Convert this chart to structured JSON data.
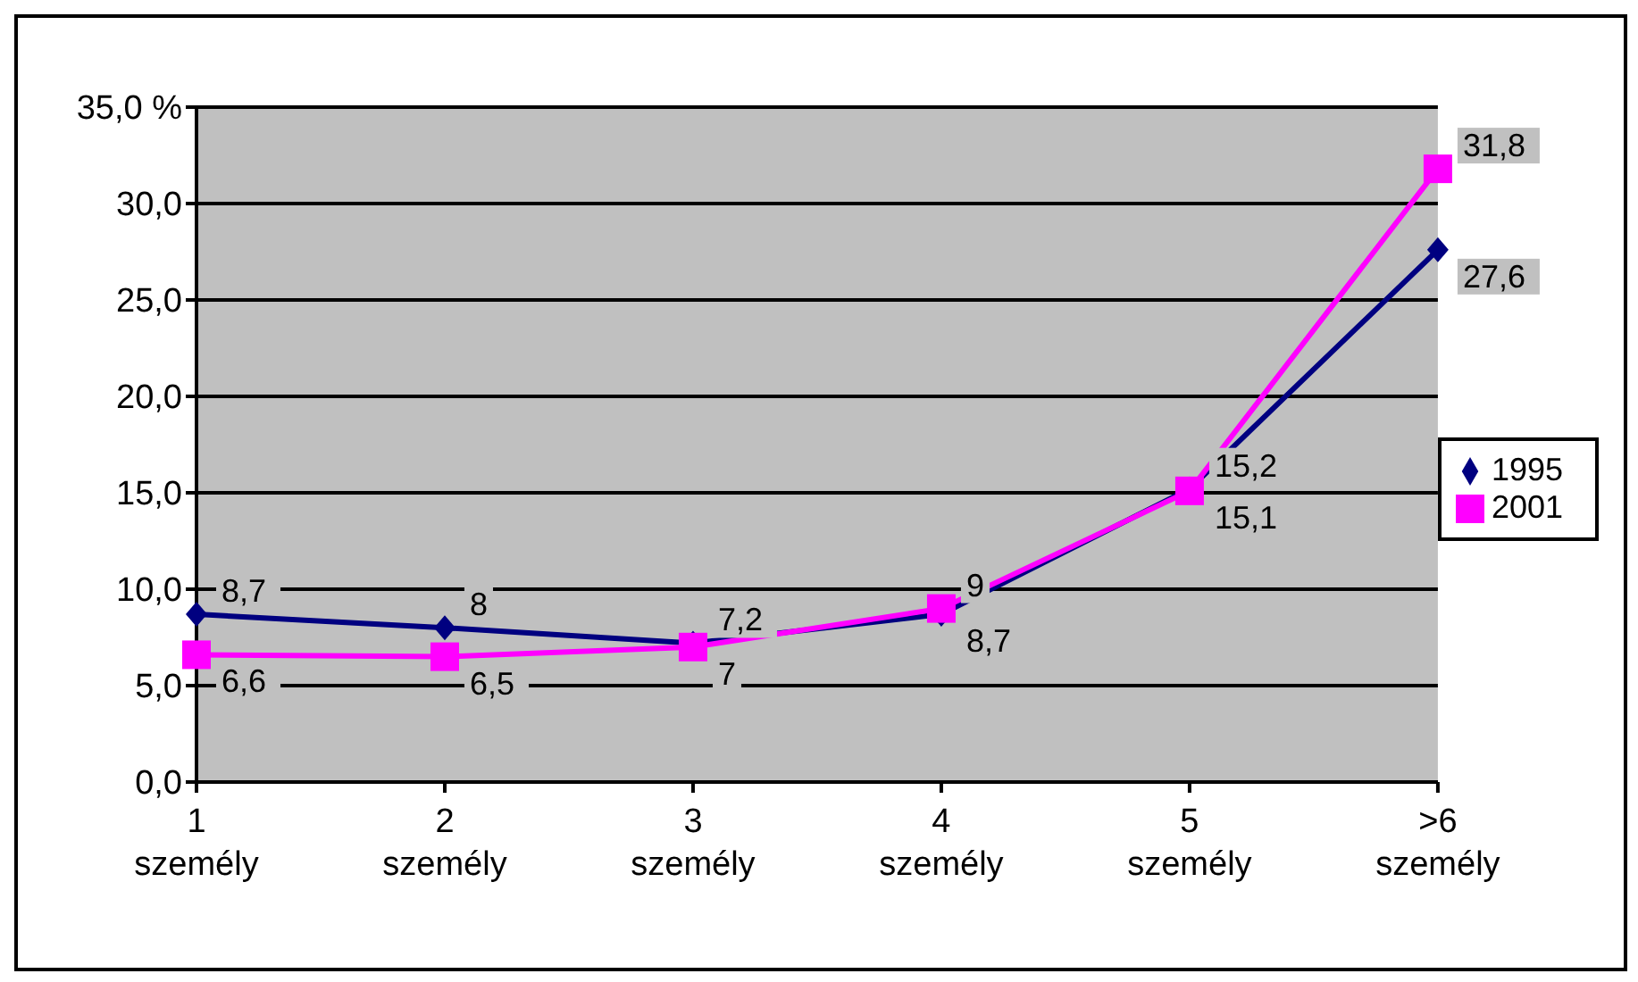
{
  "chart_data": {
    "type": "line",
    "categories": [
      "1 személy",
      "2 személy",
      "3 személy",
      "4 személy",
      "5 személy",
      ">6 személy"
    ],
    "series": [
      {
        "name": "1995",
        "color": "#000080",
        "marker": "diamond",
        "values": [
          8.7,
          8,
          7.2,
          8.7,
          15.2,
          27.6
        ],
        "value_labels": [
          "8,7",
          "8",
          "7,2",
          "8,7",
          "15,2",
          "27,6"
        ]
      },
      {
        "name": "2001",
        "color": "#ff00ff",
        "marker": "square",
        "values": [
          6.6,
          6.5,
          7,
          9,
          15.1,
          31.8
        ],
        "value_labels": [
          "6,6",
          "6,5",
          "7",
          "9",
          "15,1",
          "31,8"
        ]
      }
    ],
    "ylim": [
      0,
      35
    ],
    "yticks": [
      {
        "value": 0,
        "label": "0,0"
      },
      {
        "value": 5,
        "label": "5,0"
      },
      {
        "value": 10,
        "label": "10,0"
      },
      {
        "value": 15,
        "label": "15,0"
      },
      {
        "value": 20,
        "label": "20,0"
      },
      {
        "value": 25,
        "label": "25,0"
      },
      {
        "value": 30,
        "label": "30,0"
      },
      {
        "value": 35,
        "label": "35,0 %"
      }
    ],
    "grid": "y",
    "legend": "right"
  }
}
